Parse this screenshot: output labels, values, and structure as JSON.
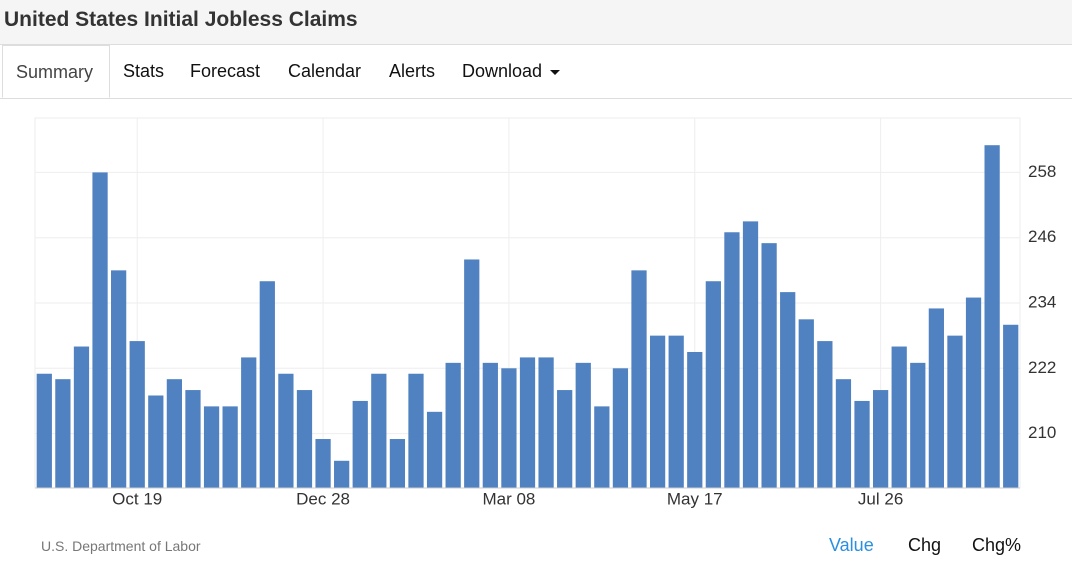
{
  "header": {
    "title": "United States Initial Jobless Claims"
  },
  "tabs": [
    "Summary",
    "Stats",
    "Forecast",
    "Calendar",
    "Alerts",
    "Download"
  ],
  "chart_data": {
    "type": "bar",
    "color": "#5081c0",
    "categories": [
      null,
      null,
      null,
      null,
      null,
      "Oct 19",
      null,
      null,
      null,
      null,
      null,
      null,
      null,
      null,
      null,
      "Dec 28",
      null,
      null,
      null,
      null,
      null,
      null,
      null,
      null,
      null,
      "Mar 08",
      null,
      null,
      null,
      null,
      null,
      null,
      null,
      null,
      null,
      "May 17",
      null,
      null,
      null,
      null,
      null,
      null,
      null,
      null,
      null,
      "Jul 26",
      null,
      null,
      null,
      null,
      null,
      null,
      null
    ],
    "values": [
      221,
      220,
      226,
      258,
      240,
      227,
      217,
      220,
      218,
      215,
      215,
      224,
      238,
      221,
      218,
      209,
      205,
      216,
      221,
      209,
      221,
      214,
      223,
      242,
      223,
      222,
      224,
      224,
      218,
      223,
      215,
      222,
      240,
      228,
      228,
      225,
      238,
      247,
      249,
      245,
      236,
      231,
      227,
      220,
      216,
      218,
      226,
      223,
      233,
      228,
      235,
      263,
      230
    ],
    "ylim": [
      200,
      268
    ],
    "yticks": [
      210,
      222,
      234,
      246,
      258
    ],
    "grid": true
  },
  "source": "U.S. Department of Labor",
  "views": [
    "Value",
    "Chg",
    "Chg%"
  ]
}
